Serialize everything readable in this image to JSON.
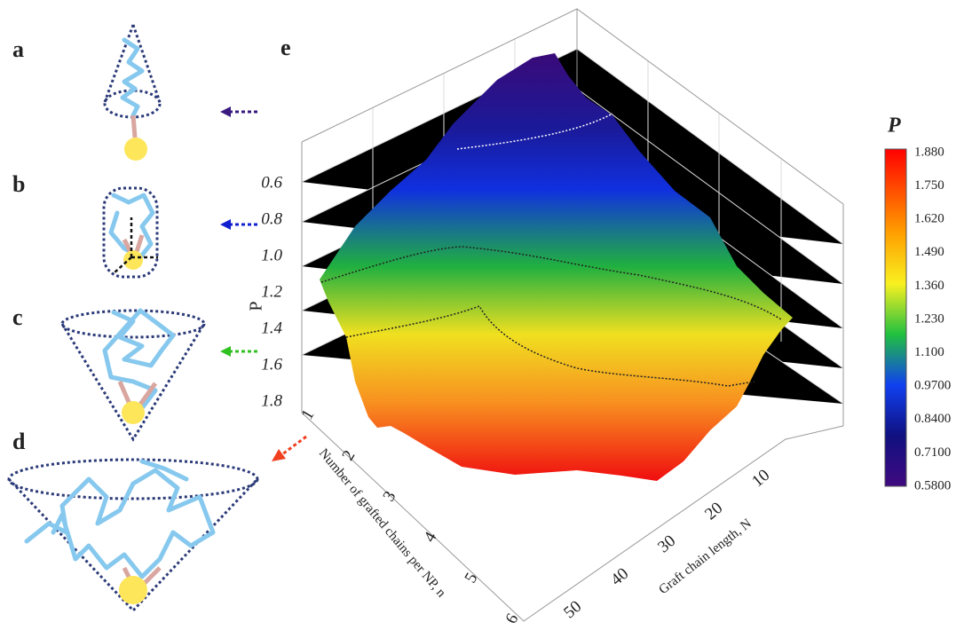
{
  "panels": {
    "labels": [
      "a",
      "b",
      "c",
      "d",
      "e"
    ]
  },
  "surface": {
    "z_axis_label": "P",
    "z_ticks": [
      "0.6",
      "0.8",
      "1.0",
      "1.2",
      "1.4",
      "1.6",
      "1.8"
    ],
    "n_axis_label": "Number of grafted chains per NP, n",
    "n_ticks": [
      "1",
      "2",
      "3",
      "4",
      "5",
      "6"
    ],
    "N_axis_label": "Graft chain length, N",
    "N_ticks": [
      "10",
      "20",
      "30",
      "40",
      "50"
    ]
  },
  "colorbar": {
    "title": "P",
    "ticks": [
      "1.880",
      "1.750",
      "1.620",
      "1.490",
      "1.360",
      "1.230",
      "1.100",
      "0.9700",
      "0.8400",
      "0.7100",
      "0.5800"
    ]
  }
}
